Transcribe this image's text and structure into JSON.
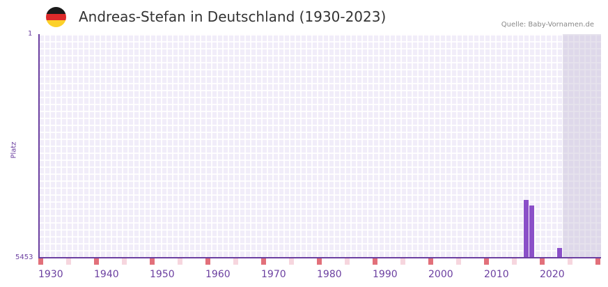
{
  "header": {
    "title": "Andreas-Stefan in Deutschland (1930-2023)",
    "source": "Quelle: Baby-Vornamen.de",
    "flag_colors": [
      "#1a1a1a",
      "#dd2a2a",
      "#fcd12a"
    ]
  },
  "axes": {
    "y_top": "1",
    "y_bottom": "5453",
    "y_label": "Platz",
    "x_ticks": [
      "1930",
      "1940",
      "1950",
      "1960",
      "1970",
      "1980",
      "1990",
      "2000",
      "2010",
      "2020"
    ]
  },
  "chart_data": {
    "type": "bar",
    "title": "Andreas-Stefan in Deutschland (1930-2023)",
    "xlabel": "",
    "ylabel": "Platz",
    "ylim": [
      5453,
      1
    ],
    "y_inverted": true,
    "x_range": [
      1930,
      2030
    ],
    "x": [
      2017,
      2018,
      2023
    ],
    "values": [
      4040,
      4180,
      5215
    ],
    "bar_color": "#8a4fc8",
    "grid": true,
    "legend": null,
    "annotations": [
      "Quelle: Baby-Vornamen.de"
    ]
  }
}
